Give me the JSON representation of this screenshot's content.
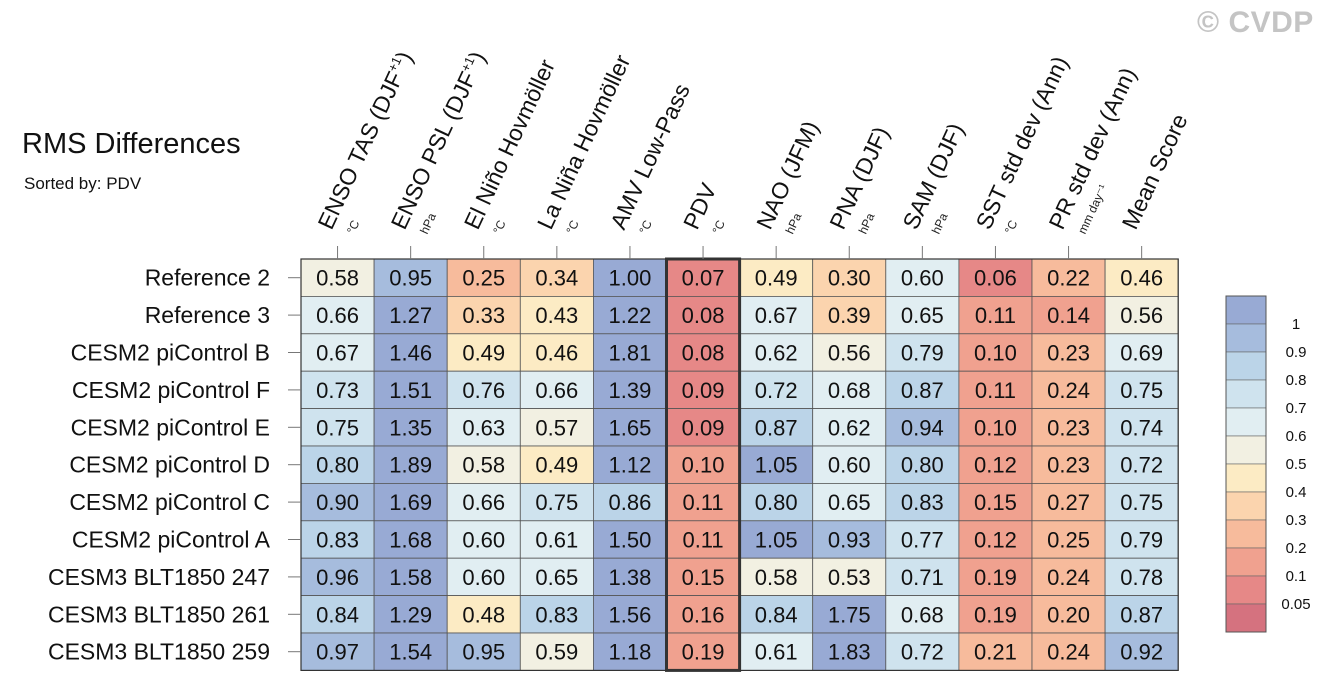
{
  "header": {
    "title": "RMS Differences",
    "subtitle": "Sorted by: PDV",
    "watermark": "© CVDP"
  },
  "chart_data": {
    "type": "heatmap",
    "title": "RMS Differences",
    "subtitle": "Sorted by: PDV",
    "highlighted_column": "PDV",
    "columns": [
      {
        "label": "ENSO TAS (DJF",
        "sup": "+1",
        "close": ")",
        "unit": "°C"
      },
      {
        "label": "ENSO PSL (DJF",
        "sup": "+1",
        "close": ")",
        "unit": "hPa"
      },
      {
        "label": "El Niño Hovmöller",
        "sup": "",
        "close": "",
        "unit": "°C"
      },
      {
        "label": "La Niña Hovmöller",
        "sup": "",
        "close": "",
        "unit": "°C"
      },
      {
        "label": "AMV Low-Pass",
        "sup": "",
        "close": "",
        "unit": "°C"
      },
      {
        "label": "PDV",
        "sup": "",
        "close": "",
        "unit": "°C"
      },
      {
        "label": "NAO (JFM)",
        "sup": "",
        "close": "",
        "unit": "hPa"
      },
      {
        "label": "PNA (DJF)",
        "sup": "",
        "close": "",
        "unit": "hPa"
      },
      {
        "label": "SAM (DJF)",
        "sup": "",
        "close": "",
        "unit": "hPa"
      },
      {
        "label": "SST std dev (Ann)",
        "sup": "",
        "close": "",
        "unit": "°C"
      },
      {
        "label": "PR std dev (Ann)",
        "sup": "",
        "close": "",
        "unit": "mm day⁻¹"
      },
      {
        "label": "Mean Score",
        "sup": "",
        "close": "",
        "unit": ""
      }
    ],
    "rows": [
      "Reference 2",
      "Reference 3",
      "CESM2 piControl B",
      "CESM2 piControl F",
      "CESM2 piControl E",
      "CESM2 piControl D",
      "CESM2 piControl C",
      "CESM2 piControl A",
      "CESM3 BLT1850 247",
      "CESM3 BLT1850 261",
      "CESM3 BLT1850 259"
    ],
    "values": [
      [
        "0.58",
        "0.95",
        "0.25",
        "0.34",
        "1.00",
        "0.07",
        "0.49",
        "0.30",
        "0.60",
        "0.06",
        "0.22",
        "0.46"
      ],
      [
        "0.66",
        "1.27",
        "0.33",
        "0.43",
        "1.22",
        "0.08",
        "0.67",
        "0.39",
        "0.65",
        "0.11",
        "0.14",
        "0.56"
      ],
      [
        "0.67",
        "1.46",
        "0.49",
        "0.46",
        "1.81",
        "0.08",
        "0.62",
        "0.56",
        "0.79",
        "0.10",
        "0.23",
        "0.69"
      ],
      [
        "0.73",
        "1.51",
        "0.76",
        "0.66",
        "1.39",
        "0.09",
        "0.72",
        "0.68",
        "0.87",
        "0.11",
        "0.24",
        "0.75"
      ],
      [
        "0.75",
        "1.35",
        "0.63",
        "0.57",
        "1.65",
        "0.09",
        "0.87",
        "0.62",
        "0.94",
        "0.10",
        "0.23",
        "0.74"
      ],
      [
        "0.80",
        "1.89",
        "0.58",
        "0.49",
        "1.12",
        "0.10",
        "1.05",
        "0.60",
        "0.80",
        "0.12",
        "0.23",
        "0.72"
      ],
      [
        "0.90",
        "1.69",
        "0.66",
        "0.75",
        "0.86",
        "0.11",
        "0.80",
        "0.65",
        "0.83",
        "0.15",
        "0.27",
        "0.75"
      ],
      [
        "0.83",
        "1.68",
        "0.60",
        "0.61",
        "1.50",
        "0.11",
        "1.05",
        "0.93",
        "0.77",
        "0.12",
        "0.25",
        "0.79"
      ],
      [
        "0.96",
        "1.58",
        "0.60",
        "0.65",
        "1.38",
        "0.15",
        "0.58",
        "0.53",
        "0.71",
        "0.19",
        "0.24",
        "0.78"
      ],
      [
        "0.84",
        "1.29",
        "0.48",
        "0.83",
        "1.56",
        "0.16",
        "0.84",
        "1.75",
        "0.68",
        "0.19",
        "0.20",
        "0.87"
      ],
      [
        "0.97",
        "1.54",
        "0.95",
        "0.59",
        "1.18",
        "0.19",
        "0.61",
        "1.83",
        "0.72",
        "0.21",
        "0.24",
        "0.92"
      ]
    ],
    "colorbar": {
      "tick_labels": [
        "1",
        "0.9",
        "0.8",
        "0.7",
        "0.6",
        "0.5",
        "0.4",
        "0.3",
        "0.2",
        "0.1",
        "0.05"
      ],
      "bin_edges": [
        0,
        0.05,
        0.1,
        0.2,
        0.3,
        0.4,
        0.5,
        0.6,
        0.7,
        0.8,
        0.9,
        1
      ],
      "bin_colors": [
        "#d5727f",
        "#e68887",
        "#f0a18f",
        "#f7bb9c",
        "#fbd4ae",
        "#fcebc4",
        "#f2f0e2",
        "#e1eef2",
        "#cfe3ee",
        "#bbd4e8",
        "#a6bcdd",
        "#98aad4"
      ]
    }
  }
}
